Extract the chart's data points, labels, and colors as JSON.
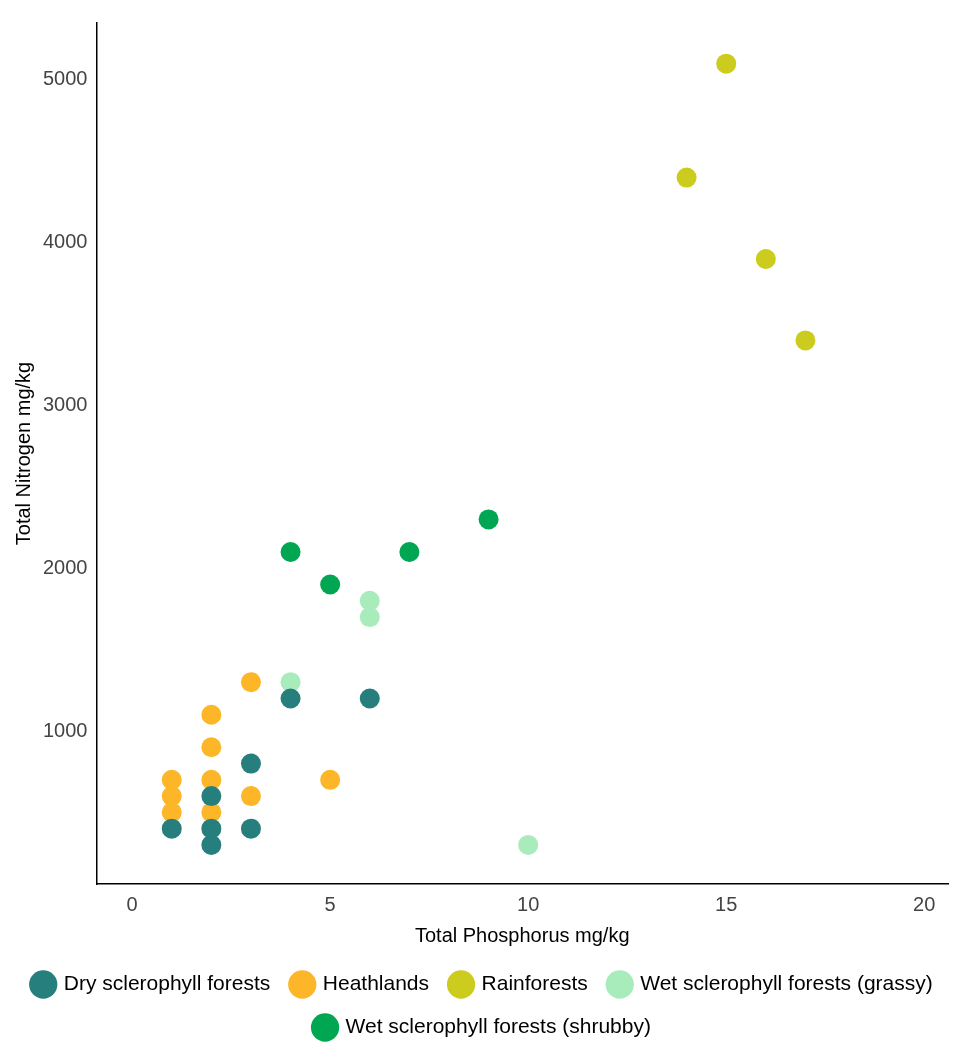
{
  "chart_data": {
    "type": "scatter",
    "xlabel": "Total Phosphorus mg/kg",
    "ylabel": "Total Nitrogen mg/kg",
    "xlim": [
      -0.9,
      20.6
    ],
    "xticks": [
      0,
      5,
      10,
      15,
      20
    ],
    "ylim": [
      60,
      5350
    ],
    "yticks": [
      1000,
      2000,
      3000,
      4000,
      5000
    ],
    "grid": false,
    "legend": "bottom",
    "marker": "circle",
    "series": [
      {
        "name": "Dry sclerophyll forests",
        "color": "#267f7d",
        "x": [
          1,
          2,
          2,
          2,
          3,
          3,
          4,
          6
        ],
        "values": [
          400,
          400,
          300,
          600,
          800,
          400,
          1200,
          1200
        ]
      },
      {
        "name": "Heathlands",
        "color": "#fdb627",
        "x": [
          1,
          1,
          1,
          2,
          2,
          2,
          2,
          3,
          3,
          5
        ],
        "values": [
          700,
          600,
          500,
          1100,
          900,
          700,
          500,
          1300,
          600,
          700
        ]
      },
      {
        "name": "Rainforests",
        "color": "#cccc1f",
        "x": [
          14,
          15,
          16,
          17
        ],
        "values": [
          4400,
          5100,
          3900,
          3400
        ]
      },
      {
        "name": "Wet sclerophyll forests (grassy)",
        "color": "#a8ecbb",
        "x": [
          4,
          6,
          6,
          10
        ],
        "values": [
          1300,
          1800,
          1700,
          300
        ]
      },
      {
        "name": "Wet sclerophyll forests (shrubby)",
        "color": "#00a651",
        "x": [
          4,
          5,
          7,
          9
        ],
        "values": [
          2100,
          1900,
          2100,
          2300
        ]
      }
    ]
  }
}
